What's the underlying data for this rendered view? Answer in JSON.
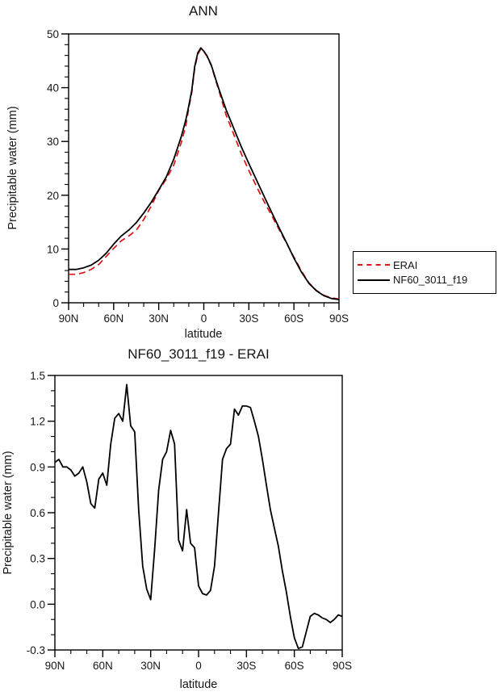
{
  "figure": {
    "background": "#ffffff",
    "frame_color": "#000000"
  },
  "chart_data": [
    {
      "type": "line",
      "title": "ANN",
      "xlabel": "latitude",
      "ylabel": "Precipitable water (mm)",
      "xlim": [
        90,
        -90
      ],
      "ylim": [
        0,
        50
      ],
      "grid": false,
      "legend_position": "outside-right",
      "xticks": [
        {
          "v": 90,
          "label": "90N"
        },
        {
          "v": 60,
          "label": "60N"
        },
        {
          "v": 30,
          "label": "30N"
        },
        {
          "v": 0,
          "label": "0"
        },
        {
          "v": -30,
          "label": "30S"
        },
        {
          "v": -60,
          "label": "60S"
        },
        {
          "v": -90,
          "label": "90S"
        }
      ],
      "yticks": [
        {
          "v": 0,
          "label": "0"
        },
        {
          "v": 10,
          "label": "10"
        },
        {
          "v": 20,
          "label": "20"
        },
        {
          "v": 30,
          "label": "30"
        },
        {
          "v": 40,
          "label": "40"
        },
        {
          "v": 50,
          "label": "50"
        }
      ],
      "x_minor": 10,
      "y_minor": 2,
      "series": [
        {
          "name": "ERAI",
          "color": "#dd1111",
          "style": "dashed",
          "x": [
            90,
            85,
            80,
            75,
            70,
            65,
            60,
            55,
            50,
            45,
            40,
            35,
            30,
            25,
            20,
            15,
            12,
            10,
            8,
            6,
            4,
            2,
            0,
            -2,
            -5,
            -8,
            -10,
            -15,
            -20,
            -25,
            -30,
            -35,
            -40,
            -45,
            -50,
            -55,
            -60,
            -65,
            -70,
            -75,
            -80,
            -85,
            -90
          ],
          "y": [
            5.3,
            5.3,
            5.6,
            6.2,
            7.1,
            8.6,
            10.1,
            11.5,
            12.4,
            13.5,
            15.5,
            18.0,
            20.9,
            23.0,
            25.6,
            29.8,
            32.9,
            36.2,
            39.1,
            43.7,
            46.2,
            47.2,
            46.7,
            45.9,
            44.1,
            41.3,
            39.5,
            34.8,
            31.3,
            27.7,
            24.6,
            21.7,
            18.9,
            16.3,
            13.7,
            11.1,
            8.5,
            5.9,
            3.7,
            2.3,
            1.4,
            0.9,
            0.7
          ]
        },
        {
          "name": "NF60_3011_f19",
          "color": "#000000",
          "style": "solid",
          "x": [
            90,
            85,
            80,
            75,
            70,
            65,
            60,
            55,
            50,
            45,
            40,
            35,
            30,
            25,
            20,
            15,
            12,
            10,
            8,
            6,
            4,
            2,
            0,
            -2,
            -5,
            -8,
            -10,
            -15,
            -20,
            -25,
            -30,
            -35,
            -40,
            -45,
            -50,
            -55,
            -60,
            -65,
            -70,
            -75,
            -80,
            -85,
            -90
          ],
          "y": [
            6.2,
            6.2,
            6.5,
            7.0,
            7.9,
            9.2,
            10.9,
            12.4,
            13.5,
            14.9,
            16.7,
            18.7,
            21.0,
            23.4,
            26.7,
            30.9,
            34.0,
            36.6,
            39.5,
            44.0,
            46.5,
            47.4,
            46.8,
            46.0,
            44.2,
            41.5,
            39.8,
            35.8,
            32.4,
            29.0,
            25.9,
            22.9,
            19.9,
            16.9,
            14.0,
            11.2,
            8.3,
            5.7,
            3.6,
            2.2,
            1.3,
            0.8,
            0.6
          ]
        }
      ]
    },
    {
      "type": "line",
      "title": "NF60_3011_f19 - ERAI",
      "xlabel": "latitude",
      "ylabel": "Precipitable water (mm)",
      "xlim": [
        90,
        -90
      ],
      "ylim": [
        -0.3,
        1.5
      ],
      "grid": false,
      "xticks": [
        {
          "v": 90,
          "label": "90N"
        },
        {
          "v": 60,
          "label": "60N"
        },
        {
          "v": 30,
          "label": "30N"
        },
        {
          "v": 0,
          "label": "0"
        },
        {
          "v": -30,
          "label": "30S"
        },
        {
          "v": -60,
          "label": "60S"
        },
        {
          "v": -90,
          "label": "90S"
        }
      ],
      "yticks": [
        {
          "v": -0.3,
          "label": "-0.3"
        },
        {
          "v": 0,
          "label": "0.0"
        },
        {
          "v": 0.3,
          "label": "0.3"
        },
        {
          "v": 0.6,
          "label": "0.6"
        },
        {
          "v": 0.9,
          "label": "0.9"
        },
        {
          "v": 1.2,
          "label": "1.2"
        },
        {
          "v": 1.5,
          "label": "1.5"
        }
      ],
      "x_minor": 10,
      "y_minor": 0.1,
      "series": [
        {
          "name": "NF60_3011_f19 - ERAI",
          "color": "#000000",
          "style": "solid",
          "x": [
            90,
            87.5,
            85,
            82.5,
            80,
            77.5,
            75,
            72.5,
            70,
            67.5,
            65,
            62.5,
            60,
            57.5,
            55,
            52.5,
            50,
            47.5,
            45,
            42.5,
            40,
            37.5,
            35,
            32.5,
            30,
            27.5,
            25,
            22.5,
            20,
            17.5,
            15,
            12.5,
            10,
            7.5,
            5,
            2.5,
            0,
            -2.5,
            -5,
            -7.5,
            -10,
            -12.5,
            -15,
            -17.5,
            -20,
            -22.5,
            -25,
            -27.5,
            -30,
            -32.5,
            -35,
            -37.5,
            -40,
            -42.5,
            -45,
            -47.5,
            -50,
            -52.5,
            -55,
            -57.5,
            -60,
            -62.5,
            -65,
            -67.5,
            -70,
            -72.5,
            -75,
            -77.5,
            -80,
            -82.5,
            -85,
            -87.5,
            -90
          ],
          "y": [
            0.93,
            0.95,
            0.9,
            0.9,
            0.88,
            0.84,
            0.86,
            0.9,
            0.8,
            0.66,
            0.63,
            0.82,
            0.86,
            0.78,
            1.05,
            1.22,
            1.25,
            1.2,
            1.44,
            1.17,
            1.13,
            0.62,
            0.25,
            0.1,
            0.03,
            0.36,
            0.75,
            0.95,
            1.0,
            1.14,
            1.05,
            0.42,
            0.35,
            0.62,
            0.4,
            0.37,
            0.12,
            0.07,
            0.06,
            0.09,
            0.25,
            0.6,
            0.95,
            1.02,
            1.05,
            1.28,
            1.24,
            1.3,
            1.3,
            1.29,
            1.2,
            1.1,
            0.95,
            0.78,
            0.62,
            0.5,
            0.38,
            0.22,
            0.08,
            -0.08,
            -0.22,
            -0.29,
            -0.28,
            -0.18,
            -0.08,
            -0.06,
            -0.07,
            -0.09,
            -0.1,
            -0.12,
            -0.1,
            -0.07,
            -0.08
          ]
        }
      ]
    }
  ]
}
